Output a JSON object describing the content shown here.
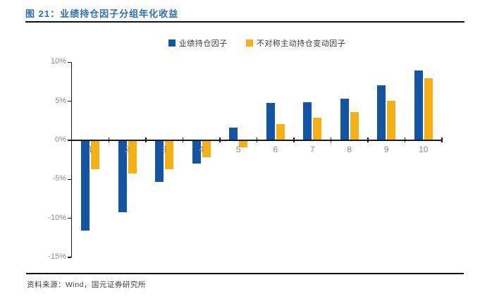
{
  "page": {
    "title": "图 21：业绩持仓因子分组年化收益",
    "source": "资料来源：Wind，国元证券研究所",
    "title_color": "#2E6DB4"
  },
  "chart_data": {
    "type": "bar",
    "title": "业绩持仓因子分组年化收益",
    "categories": [
      "1",
      "2",
      "3",
      "4",
      "5",
      "6",
      "7",
      "8",
      "9",
      "10"
    ],
    "series": [
      {
        "name": "业绩持仓因子",
        "color": "#1355A4",
        "values": [
          -11.5,
          -9.2,
          -5.3,
          -2.9,
          1.5,
          4.7,
          4.8,
          5.2,
          7.0,
          8.9
        ]
      },
      {
        "name": "不对称主动持仓变动因子",
        "color": "#F5B114",
        "values": [
          -3.7,
          -4.2,
          -3.7,
          -2.1,
          -0.9,
          2.0,
          2.8,
          3.5,
          5.0,
          7.9
        ]
      }
    ],
    "xlabel": "",
    "ylabel": "",
    "ylim": [
      -15,
      10
    ],
    "ytick_values": [
      10,
      5,
      0,
      -5,
      -10,
      -15
    ],
    "ytick_labels": [
      "10%",
      "5%",
      "0%",
      "-5%",
      "-10%",
      "-15%"
    ],
    "grid": false,
    "legend_position": "top"
  }
}
